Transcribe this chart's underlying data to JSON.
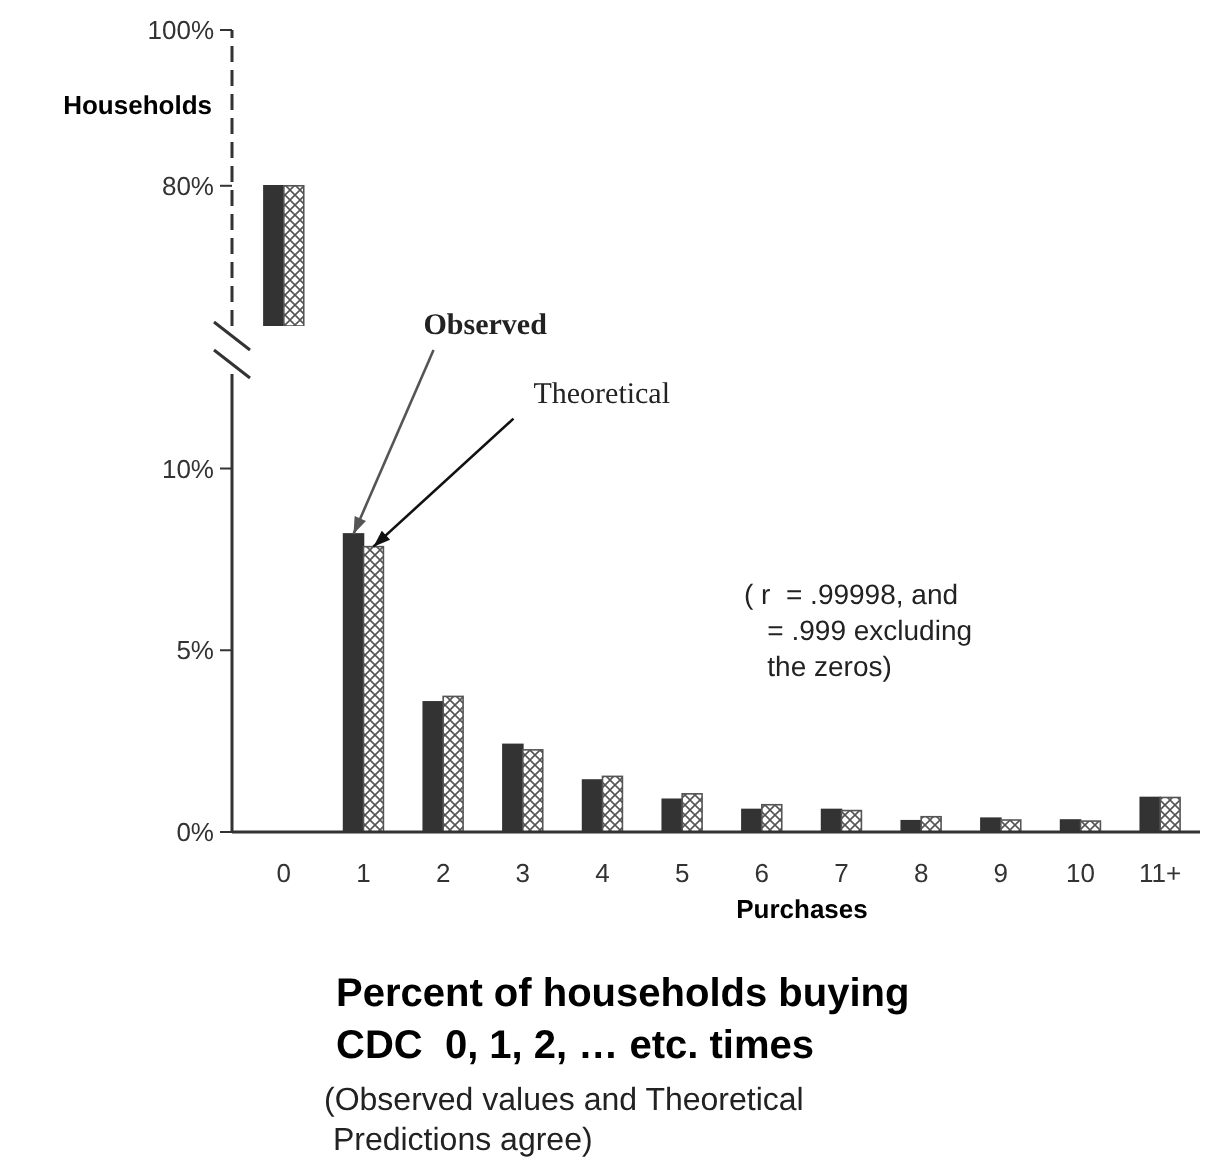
{
  "chart_data": [
    {
      "type": "bar",
      "ylabel": "Households",
      "categories": [
        null
      ],
      "ylim": [
        62,
        100
      ],
      "yticks": [
        {
          "value": 80,
          "label": "80%"
        },
        {
          "value": 100,
          "label": "100%"
        }
      ],
      "tick_labels": "y",
      "series": [
        {
          "color": "#333333",
          "values": [
            80
          ]
        },
        {
          "color": "#555555",
          "values": [
            80
          ]
        }
      ]
    },
    {
      "type": "bar",
      "title": "Percent of households buying\nCDC  0, 1, 2, … etc. times",
      "subtitle": "(Observed values and Theoretical\n Predictions agree)",
      "xlabel": "Purchases",
      "categories": [
        "0",
        "1",
        "2",
        "3",
        "4",
        "5",
        "6",
        "7",
        "8",
        "9",
        "10",
        "11+"
      ],
      "ylim": [
        0,
        12.6
      ],
      "yticks": [
        {
          "value": 0,
          "label": "0%"
        },
        {
          "value": 5,
          "label": "5%"
        },
        {
          "value": 10,
          "label": "10%"
        }
      ],
      "annotations": [
        "( r  = .99998, and\n   = .999 excluding\n   the zeros)"
      ],
      "series": [
        {
          "name": "Observed",
          "color": "#333333",
          "values": [
            null,
            8.2,
            3.58,
            2.41,
            1.43,
            0.9,
            0.62,
            0.62,
            0.31,
            0.38,
            0.33,
            0.95
          ]
        },
        {
          "name": "Theoretical",
          "color": "#555555",
          "values": [
            null,
            7.85,
            3.73,
            2.26,
            1.53,
            1.05,
            0.75,
            0.59,
            0.42,
            0.33,
            0.3,
            0.95
          ]
        }
      ]
    }
  ]
}
